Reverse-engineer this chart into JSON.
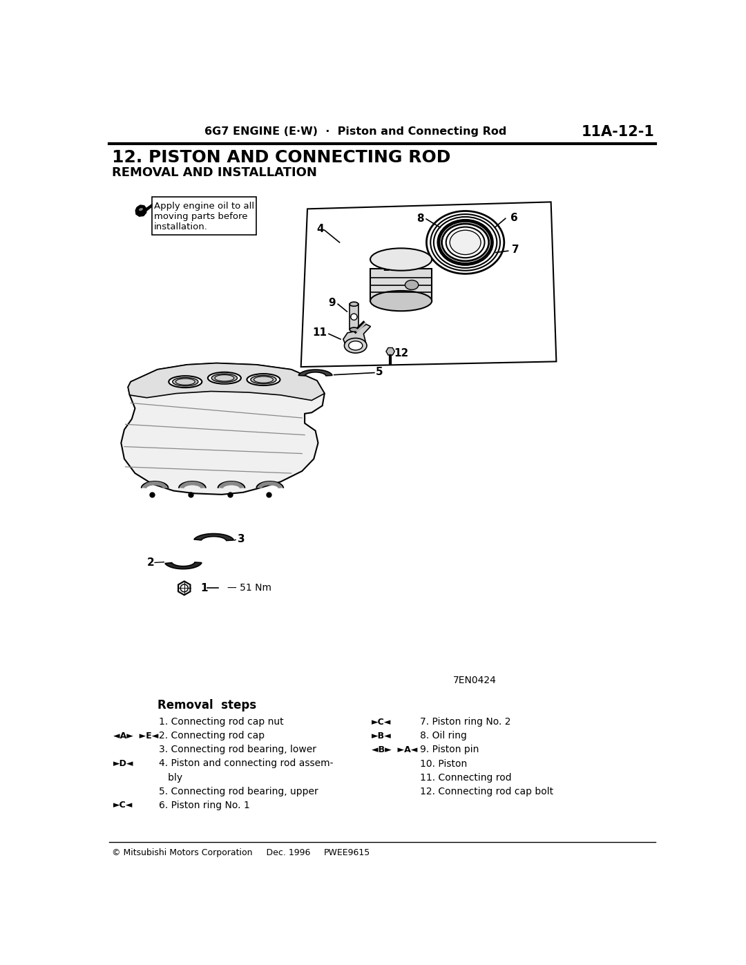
{
  "header_center": "6G7 ENGINE (E·W)  ·  Piston and Connecting Rod",
  "header_right": "11A-12-1",
  "title": "12. PISTON AND CONNECTING ROD",
  "subtitle": "REMOVAL AND INSTALLATION",
  "note_text": "Apply engine oil to all\nmoving parts before\ninstallation.",
  "figure_id": "7EN0424",
  "footer_left": "© Mitsubishi Motors Corporation     Dec. 1996",
  "footer_center": "PWEE9615",
  "removal_steps_title": "Removal  steps",
  "bg_color": "#ffffff"
}
